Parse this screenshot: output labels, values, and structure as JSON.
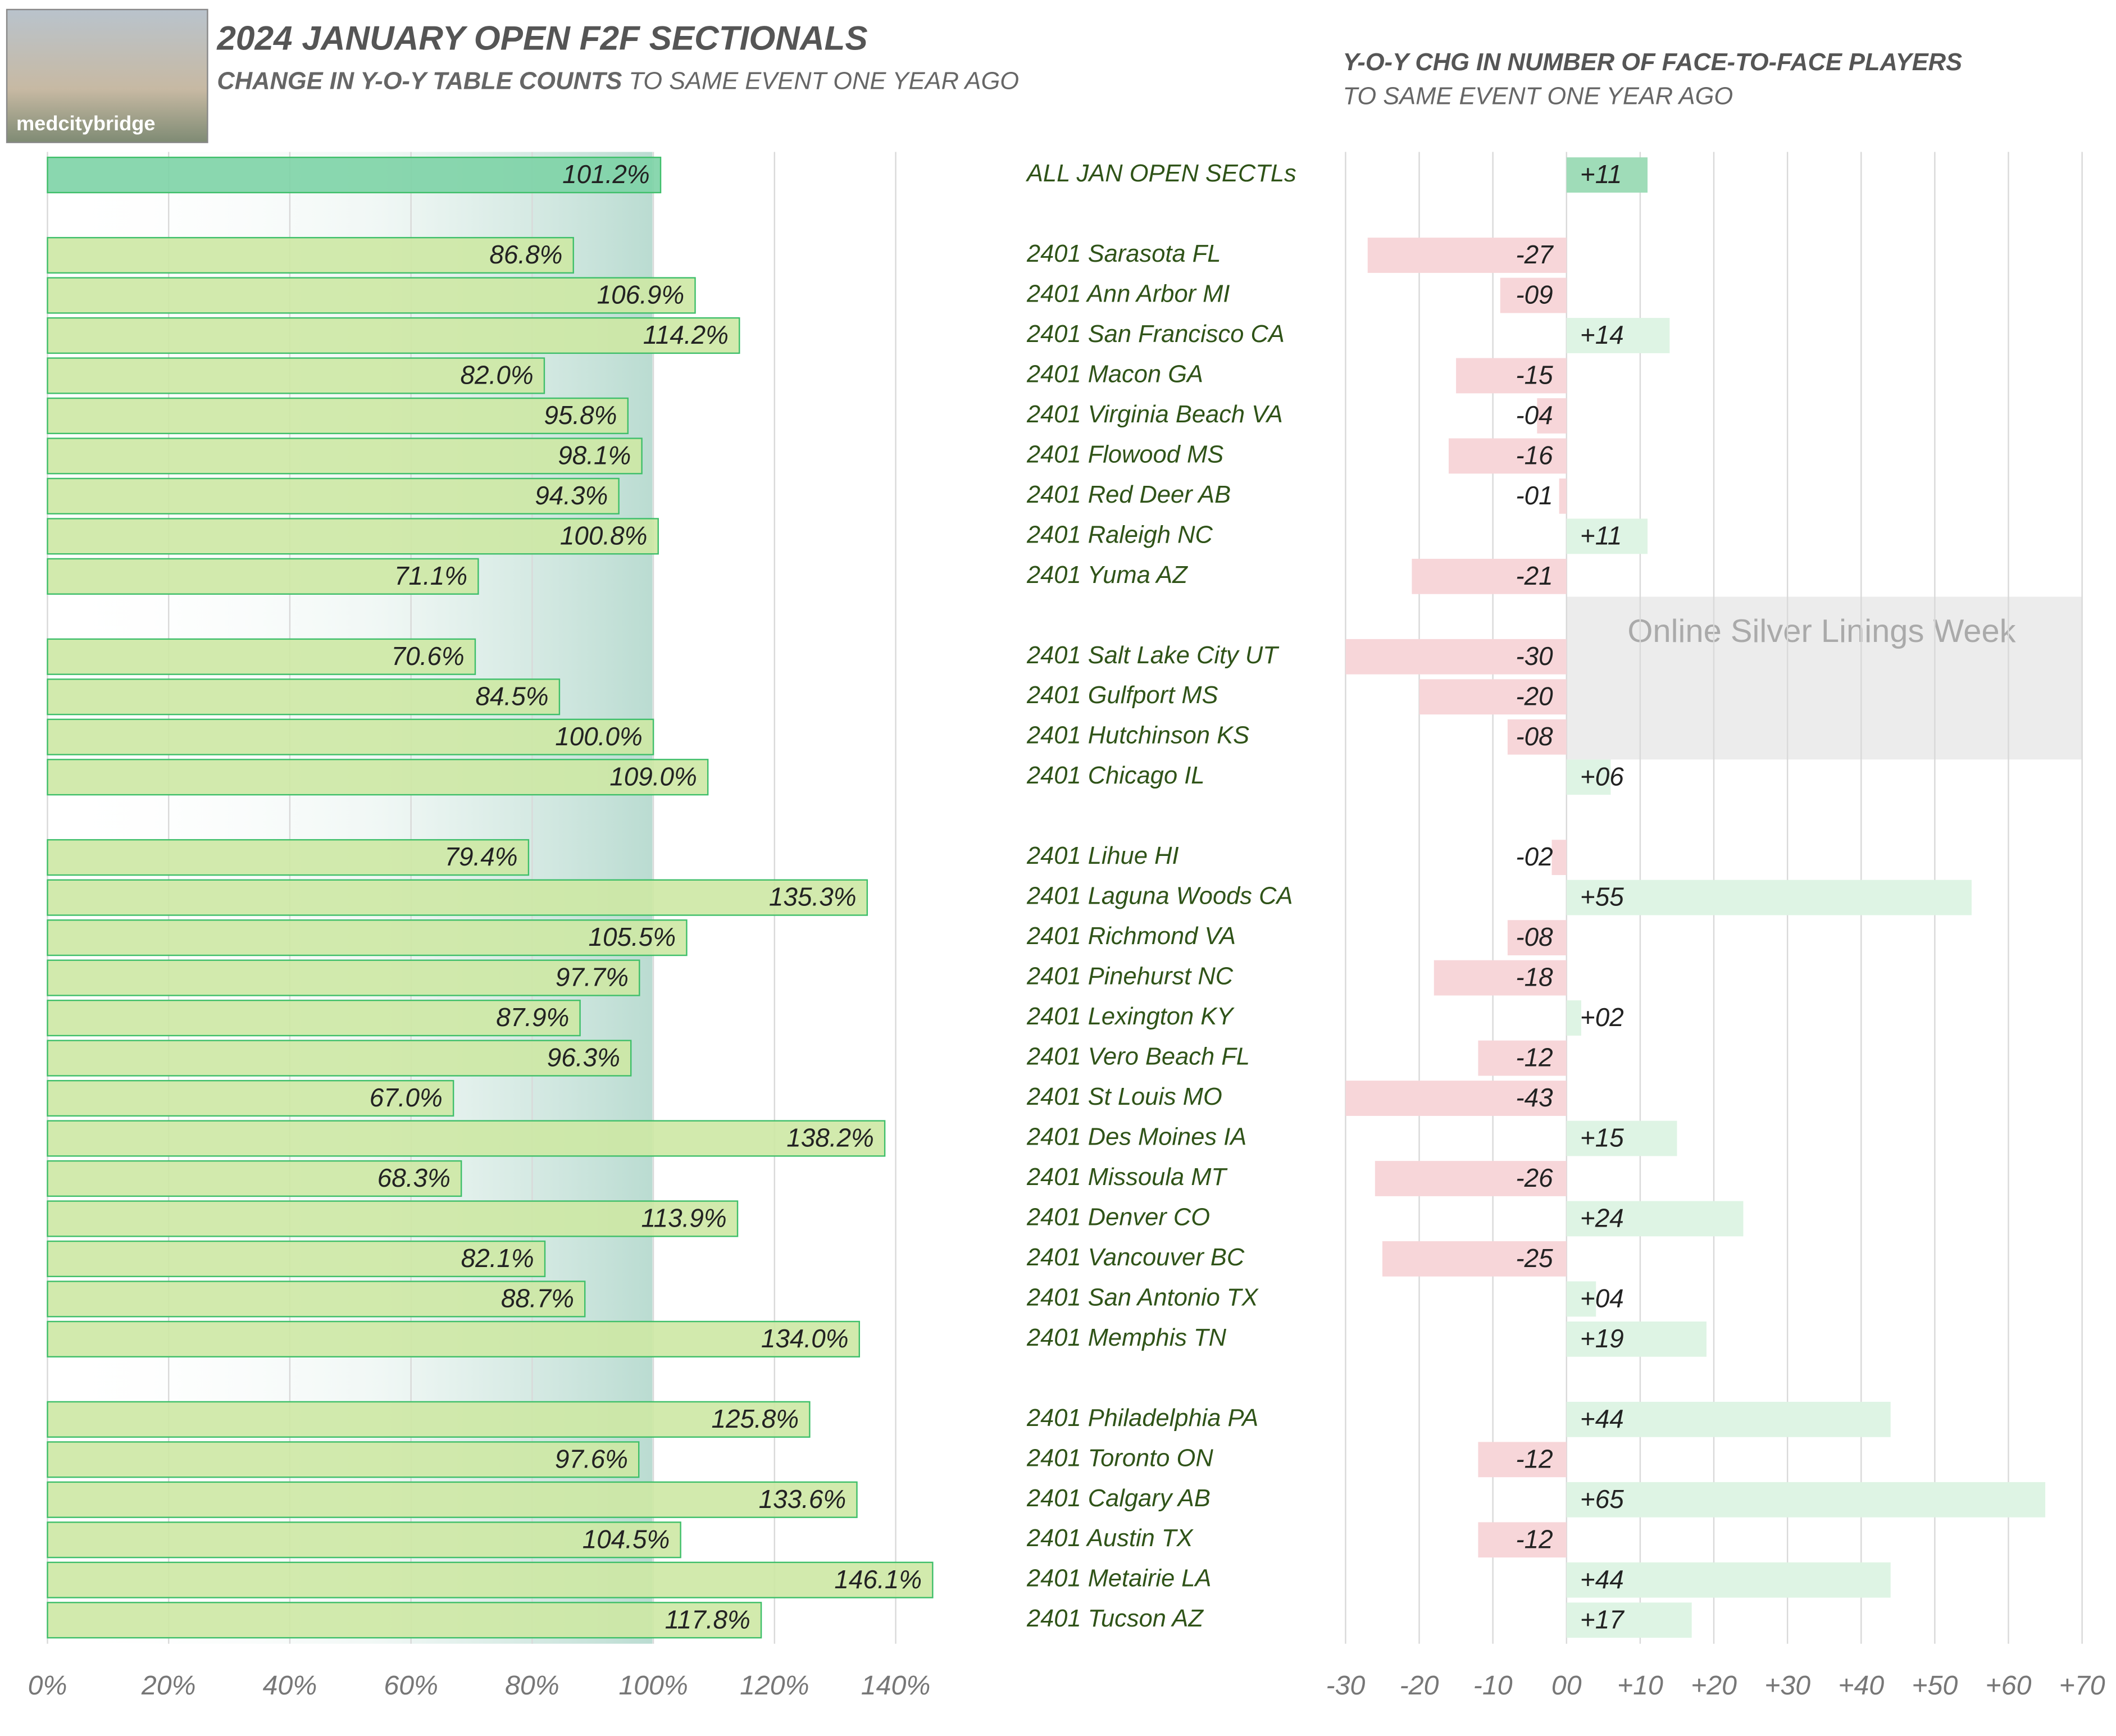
{
  "logo": "medcitybridge",
  "chart_data": [
    {
      "type": "bar",
      "orientation": "horizontal",
      "title": "2024 JANUARY OPEN F2F SECTIONALS",
      "subtitle_bold": "CHANGE IN Y-O-Y TABLE COUNTS",
      "subtitle": "TO SAME EVENT ONE YEAR AGO",
      "values": [
        101.2,
        86.8,
        106.9,
        114.2,
        82.0,
        95.8,
        98.1,
        94.3,
        100.8,
        71.1,
        70.6,
        84.5,
        100.0,
        109.0,
        79.4,
        135.3,
        105.5,
        97.7,
        87.9,
        96.3,
        67.0,
        138.2,
        68.3,
        113.9,
        82.1,
        88.7,
        134.0,
        125.8,
        97.6,
        133.6,
        104.5,
        146.1,
        117.8
      ],
      "value_labels": [
        "101.2%",
        "86.8%",
        "106.9%",
        "114.2%",
        "82.0%",
        "95.8%",
        "98.1%",
        "94.3%",
        "100.8%",
        "71.1%",
        "70.6%",
        "84.5%",
        "100.0%",
        "109.0%",
        "79.4%",
        "135.3%",
        "105.5%",
        "97.7%",
        "87.9%",
        "96.3%",
        "67.0%",
        "138.2%",
        "68.3%",
        "113.9%",
        "82.1%",
        "88.7%",
        "134.0%",
        "125.8%",
        "97.6%",
        "133.6%",
        "104.5%",
        "146.1%",
        "117.8%"
      ],
      "color": "#cde8a4",
      "highlight_color": "#7dd3a6",
      "xlim": [
        0,
        150
      ],
      "xticks": [
        {
          "value": 0,
          "label": "0%"
        },
        {
          "value": 20,
          "label": "20%"
        },
        {
          "value": 40,
          "label": "40%"
        },
        {
          "value": 60,
          "label": "60%"
        },
        {
          "value": 80,
          "label": "80%"
        },
        {
          "value": 100,
          "label": "100%"
        },
        {
          "value": 120,
          "label": "120%"
        },
        {
          "value": 140,
          "label": "140%"
        }
      ],
      "grid": true
    },
    {
      "type": "diverging-bar",
      "orientation": "horizontal",
      "title": "Y-O-Y CHG IN NUMBER OF FACE-TO-FACE PLAYERS",
      "subtitle": "TO SAME EVENT ONE YEAR AGO",
      "annotation": "Online Silver Linings Week",
      "categories": [
        "ALL JAN OPEN SECTLs",
        "2401 Sarasota FL",
        "2401 Ann Arbor MI",
        "2401 San Francisco CA",
        "2401 Macon GA",
        "2401 Virginia Beach VA",
        "2401 Flowood MS",
        "2401 Red Deer AB",
        "2401 Raleigh NC",
        "2401 Yuma AZ",
        "2401 Salt Lake City UT",
        "2401 Gulfport MS",
        "2401 Hutchinson KS",
        "2401 Chicago IL",
        "2401 Lihue HI",
        "2401 Laguna Woods CA",
        "2401 Richmond VA",
        "2401 Pinehurst NC",
        "2401 Lexington KY",
        "2401 Vero Beach FL",
        "2401 St Louis MO",
        "2401 Des Moines IA",
        "2401 Missoula MT",
        "2401 Denver CO",
        "2401 Vancouver BC",
        "2401 San Antonio TX",
        "2401 Memphis TN",
        "2401 Philadelphia PA",
        "2401 Toronto ON",
        "2401 Calgary AB",
        "2401 Austin TX",
        "2401 Metairie LA",
        "2401 Tucson AZ"
      ],
      "values": [
        11,
        -27,
        -9,
        14,
        -15,
        -4,
        -16,
        -1,
        11,
        -21,
        -30,
        -20,
        -8,
        6,
        -2,
        55,
        -8,
        -18,
        2,
        -12,
        -43,
        15,
        -26,
        24,
        -25,
        4,
        19,
        44,
        -12,
        65,
        -12,
        44,
        17
      ],
      "value_labels": [
        "+11",
        "-27",
        "-09",
        "+14",
        "-15",
        "-04",
        "-16",
        "-01",
        "+11",
        "-21",
        "-30",
        "-20",
        "-08",
        "+06",
        "-02",
        "+55",
        "-08",
        "-18",
        "+02",
        "-12",
        "-43",
        "+15",
        "-26",
        "+24",
        "-25",
        "+04",
        "+19",
        "+44",
        "-12",
        "+65",
        "-12",
        "+44",
        "+17"
      ],
      "positive_color": "#def4e4",
      "negative_color": "#f7d6d9",
      "highlight_color": "#9fdcb8",
      "xlim": [
        -30,
        70
      ],
      "xticks": [
        -30,
        -20,
        -10,
        {
          "value": 0,
          "label": "00"
        },
        {
          "value": 10,
          "label": "+10"
        },
        {
          "value": 20,
          "label": "+20"
        },
        {
          "value": 30,
          "label": "+30"
        },
        {
          "value": 40,
          "label": "+40"
        },
        {
          "value": 50,
          "label": "+50"
        },
        {
          "value": 60,
          "label": "+60"
        },
        {
          "value": 70,
          "label": "+70"
        }
      ],
      "grid": true
    }
  ]
}
